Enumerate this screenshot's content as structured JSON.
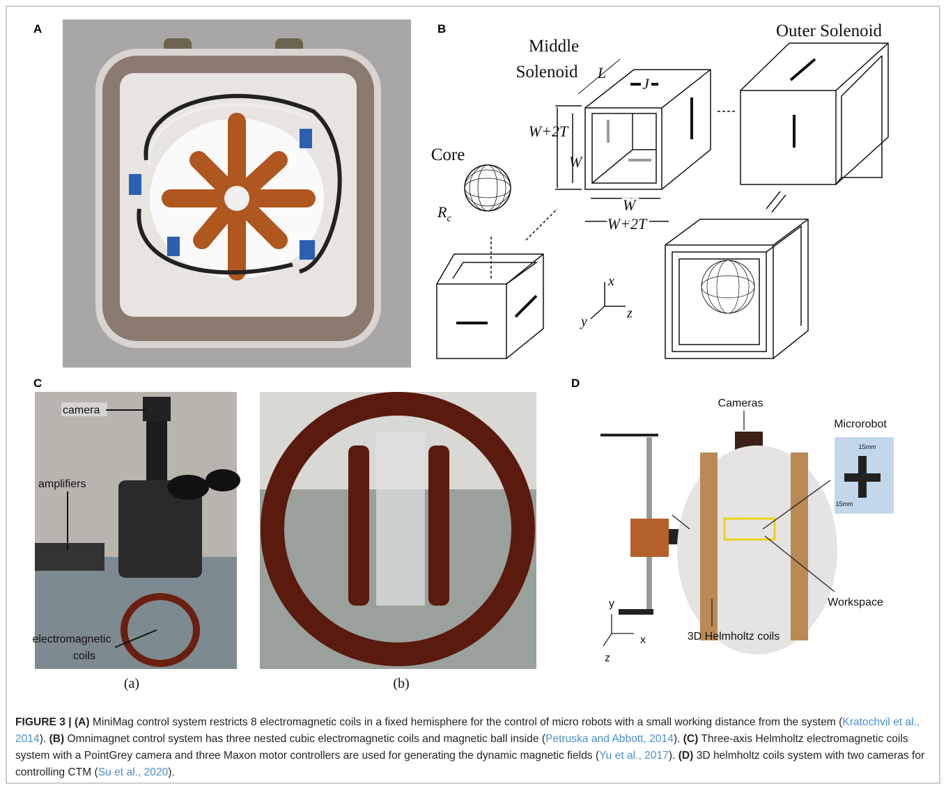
{
  "panels": {
    "A": {
      "label": "A"
    },
    "B": {
      "label": "B",
      "middle_solenoid": [
        "Middle",
        "Solenoid"
      ],
      "outer_solenoid": "Outer Solenoid",
      "core": "Core",
      "length": "L",
      "current": "J",
      "outer_width_left": "W+2T",
      "inner_width_left": "W",
      "inner_width_bottom": "W",
      "outer_width_bottom": "W+2T",
      "radius": {
        "symbol": "R",
        "subscript": "c"
      },
      "axes": {
        "x": "x",
        "y": "y",
        "z": "z"
      }
    },
    "C": {
      "label": "C",
      "camera": "camera",
      "amplifiers": "amplifiers",
      "coils": [
        "electromagnetic",
        "coils"
      ],
      "sub_a": "(a)",
      "sub_b": "(b)"
    },
    "D": {
      "label": "D",
      "cameras": "Cameras",
      "microrobot": "Microrobot",
      "scale_h": "15mm",
      "scale_v": "15mm",
      "workspace": "Workspace",
      "coils": "3D Helmholtz coils",
      "axes": {
        "y": "y",
        "x": "x",
        "z": "z"
      }
    }
  },
  "caption": {
    "parts": [
      {
        "kind": "bold",
        "text": "FIGURE 3 | (A)"
      },
      {
        "kind": "text",
        "text": " MiniMag control system restricts 8 electromagnetic coils in a fixed hemisphere for the control of micro robots with a small working distance from the system ("
      },
      {
        "kind": "link",
        "text": "Kratochvil et al., 2014"
      },
      {
        "kind": "text",
        "text": "). "
      },
      {
        "kind": "bold",
        "text": "(B)"
      },
      {
        "kind": "text",
        "text": " Omnimagnet control system has three nested cubic electromagnetic coils and magnetic ball inside ("
      },
      {
        "kind": "link",
        "text": "Petruska and Abbott, 2014"
      },
      {
        "kind": "text",
        "text": "). "
      },
      {
        "kind": "bold",
        "text": "(C)"
      },
      {
        "kind": "text",
        "text": " Three-axis Helmholtz electromagnetic coils system with a PointGrey camera and three Maxon motor controllers are used for generating the dynamic magnetic fields ("
      },
      {
        "kind": "link",
        "text": "Yu et al., 2017"
      },
      {
        "kind": "text",
        "text": "). "
      },
      {
        "kind": "bold",
        "text": "(D)"
      },
      {
        "kind": "text",
        "text": " 3D helmholtz coils system with two cameras for controlling CTM ("
      },
      {
        "kind": "link",
        "text": "Su et al., 2020"
      },
      {
        "kind": "text",
        "text": ")."
      }
    ]
  }
}
